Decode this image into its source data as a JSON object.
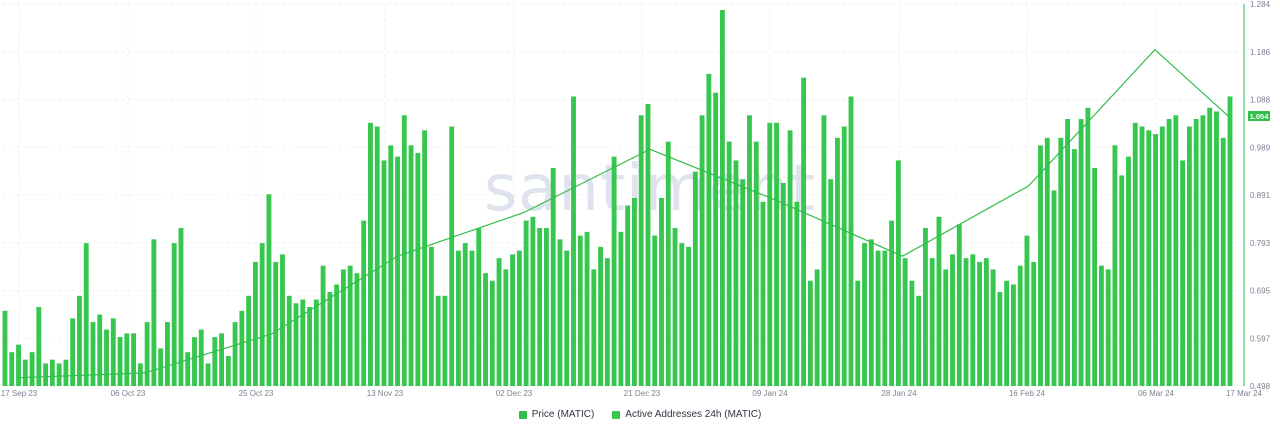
{
  "watermark": "santiment",
  "colors": {
    "price": "#2fbf4a",
    "active_addresses": "#37c74f",
    "grid": "#eef0f4",
    "badge_text": "#ffffff"
  },
  "legend": [
    {
      "label": "Price (MATIC)",
      "color": "#2fbf4a"
    },
    {
      "label": "Active Addresses 24h (MATIC)",
      "color": "#37c74f"
    }
  ],
  "chart_data": {
    "type": "bar",
    "x_tick_labels": [
      "17 Sep 23",
      "06 Oct 23",
      "25 Oct 23",
      "13 Nov 23",
      "02 Dec 23",
      "21 Dec 23",
      "09 Jan 24",
      "28 Jan 24",
      "16 Feb 24",
      "06 Mar 24",
      "17 Mar 24"
    ],
    "price_axis": {
      "position": "right",
      "ticks": [
        "1.284",
        "1.186",
        "1.088",
        "0.989",
        "0.891",
        "0.793",
        "0.695",
        "0.597",
        "0.498"
      ],
      "ylim": [
        0.498,
        1.284
      ]
    },
    "current_price_label": "1.054",
    "grid": true,
    "legend_position": "bottom-center",
    "series": [
      {
        "name": "Active Addresses 24h (MATIC)",
        "type": "bar",
        "note": "relative values, no axis shown (scale 0-100)",
        "values": [
          20,
          9,
          11,
          7,
          9,
          21,
          6,
          7,
          6,
          7,
          18,
          24,
          38,
          17,
          19,
          15,
          18,
          13,
          14,
          14,
          6,
          17,
          39,
          10,
          17,
          38,
          42,
          9,
          13,
          15,
          6,
          13,
          14,
          8,
          17,
          20,
          24,
          33,
          38,
          51,
          33,
          35,
          24,
          22,
          23,
          21,
          23,
          32,
          25,
          27,
          31,
          32,
          30,
          44,
          70,
          69,
          60,
          64,
          61,
          72,
          64,
          62,
          68,
          37,
          24,
          24,
          69,
          36,
          38,
          36,
          42,
          30,
          28,
          34,
          31,
          35,
          36,
          44,
          45,
          42,
          42,
          58,
          39,
          36,
          77,
          40,
          41,
          31,
          37,
          34,
          61,
          41,
          48,
          50,
          72,
          75,
          40,
          50,
          65,
          42,
          38,
          37,
          57,
          72,
          83,
          78,
          100,
          65,
          60,
          55,
          72,
          65,
          49,
          70,
          70,
          54,
          68,
          49,
          82,
          28,
          31,
          72,
          55,
          66,
          69,
          77,
          28,
          38,
          39,
          36,
          36,
          44,
          60,
          34,
          28,
          24,
          42,
          34,
          45,
          31,
          35,
          43,
          34,
          35,
          33,
          34,
          31,
          25,
          28,
          27,
          32,
          40,
          33,
          64,
          66,
          52,
          66,
          71,
          63,
          71,
          74,
          58,
          32,
          31,
          64,
          56,
          61,
          70,
          69,
          68,
          67,
          69,
          71,
          72,
          60,
          69,
          71,
          72,
          74,
          73,
          66,
          77
        ],
        "ylim": [
          0,
          100
        ]
      },
      {
        "name": "Price (MATIC)",
        "type": "line",
        "x": [
          "2023-09-17",
          "2023-10-06",
          "2023-10-25",
          "2023-11-13",
          "2023-12-02",
          "2023-12-21",
          "2024-01-09",
          "2024-01-28",
          "2024-02-16",
          "2024-03-06",
          "2024-03-17"
        ],
        "values": [
          0.515,
          0.525,
          0.605,
          0.765,
          0.855,
          0.985,
          0.88,
          0.765,
          0.91,
          1.19,
          1.054
        ]
      }
    ]
  }
}
